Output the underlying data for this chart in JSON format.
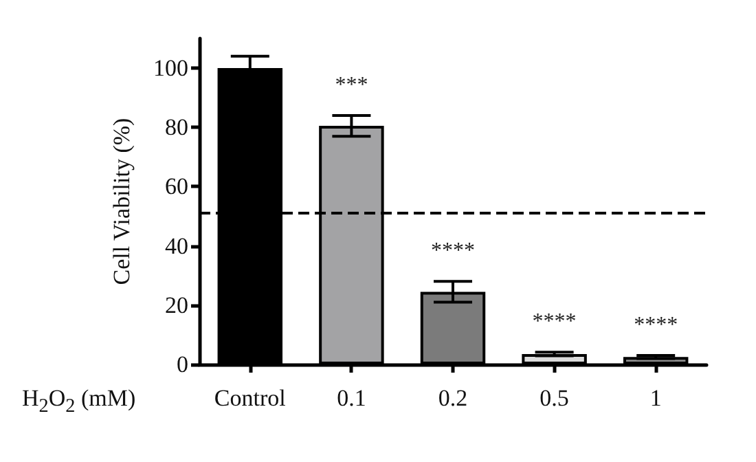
{
  "chart_data": {
    "type": "bar",
    "xlabel": "H$_{2}$O$_{2}$ (mM)",
    "ylabel": "Cell Viability (%)",
    "categories": [
      "Control",
      "0.1",
      "0.2",
      "0.5",
      "1"
    ],
    "values": [
      100,
      80.5,
      24.5,
      3.5,
      2.5
    ],
    "colors": [
      "#000000",
      "#a3a3a5",
      "#7b7b7b",
      "#dcdcdc",
      "#8e8e8e"
    ],
    "errors": [
      4,
      3.5,
      3.5,
      0.6,
      0.5
    ],
    "ylim": [
      0,
      110
    ],
    "yticks": [
      0,
      20,
      40,
      60,
      80,
      100
    ],
    "grid": false,
    "ref_lines": [
      {
        "axis": "y",
        "value": 51,
        "line_style": "dashed",
        "color": "#000000"
      }
    ],
    "annotations": [
      "***",
      "****",
      "****",
      "****"
    ]
  }
}
